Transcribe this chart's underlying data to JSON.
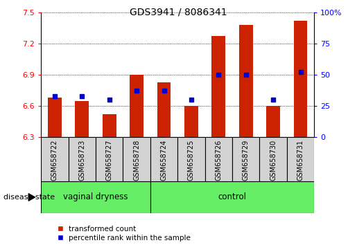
{
  "title": "GDS3941 / 8086341",
  "samples": [
    "GSM658722",
    "GSM658723",
    "GSM658727",
    "GSM658728",
    "GSM658724",
    "GSM658725",
    "GSM658726",
    "GSM658729",
    "GSM658730",
    "GSM658731"
  ],
  "red_values": [
    6.68,
    6.65,
    6.52,
    6.9,
    6.83,
    6.6,
    7.27,
    7.38,
    6.6,
    7.42
  ],
  "blue_values_pct": [
    33,
    33,
    30,
    37,
    37,
    30,
    50,
    50,
    30,
    52
  ],
  "ylim_left": [
    6.3,
    7.5
  ],
  "yticks_left": [
    6.3,
    6.6,
    6.9,
    7.2,
    7.5
  ],
  "yticks_right": [
    0,
    25,
    50,
    75,
    100
  ],
  "group_label": "disease state",
  "bar_color": "#cc2200",
  "dot_color": "#0000cc",
  "bar_width": 0.5,
  "label_area_color": "#d3d3d3",
  "group_area_color": "#66ee66",
  "group_spans": [
    {
      "start": 0,
      "end": 3,
      "label": "vaginal dryness"
    },
    {
      "start": 4,
      "end": 9,
      "label": "control"
    }
  ]
}
